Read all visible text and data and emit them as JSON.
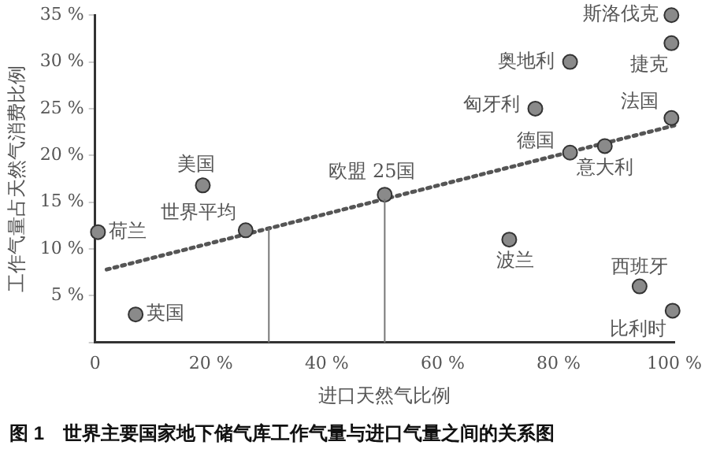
{
  "chart_data": {
    "type": "scatter",
    "xlabel": "进口天然气比例",
    "ylabel": "工作气量占天然气消费比例",
    "xlim": [
      0,
      100
    ],
    "ylim": [
      0,
      35
    ],
    "xticks": [
      {
        "value": 0,
        "label": "0"
      },
      {
        "value": 20,
        "label": "20 %"
      },
      {
        "value": 40,
        "label": "40 %"
      },
      {
        "value": 60,
        "label": "60 %"
      },
      {
        "value": 80,
        "label": "80 %"
      },
      {
        "value": 100,
        "label": "100 %"
      }
    ],
    "yticks": [
      {
        "value": 0,
        "label": null
      },
      {
        "value": 5,
        "label": "5 %"
      },
      {
        "value": 10,
        "label": "10 %"
      },
      {
        "value": 15,
        "label": "15 %"
      },
      {
        "value": 20,
        "label": "20 %"
      },
      {
        "value": 25,
        "label": "25 %"
      },
      {
        "value": 30,
        "label": "30 %"
      },
      {
        "value": 35,
        "label": "35 %"
      }
    ],
    "grid": false,
    "legend": false,
    "marker": "circle",
    "series": [
      {
        "type": "scatter",
        "color": "#8a8a8a",
        "x": [
          99.5,
          99.5,
          82,
          76,
          99.5,
          82,
          88,
          18.6,
          50,
          26,
          0.5,
          71.5,
          7,
          94,
          99.7
        ],
        "values": [
          35,
          32,
          30,
          25,
          24,
          20.3,
          21,
          16.8,
          15.8,
          12,
          11.8,
          11,
          3,
          6,
          3.4
        ]
      },
      {
        "type": "line",
        "color": "#555555",
        "line_style": "dotted",
        "marker": "none",
        "x": [
          2,
          100
        ],
        "values": [
          7.8,
          23.2
        ]
      }
    ],
    "ref_lines": [
      {
        "axis": "x",
        "value": 30,
        "color": "#777777"
      },
      {
        "axis": "x",
        "value": 50,
        "color": "#777777"
      }
    ],
    "annotations": [
      {
        "text": "斯洛伐克",
        "x": 99.5,
        "y": 35
      },
      {
        "text": "捷克",
        "x": 99.5,
        "y": 32
      },
      {
        "text": "奥地利",
        "x": 82,
        "y": 30
      },
      {
        "text": "匈牙利",
        "x": 76,
        "y": 25
      },
      {
        "text": "法国",
        "x": 99.5,
        "y": 24
      },
      {
        "text": "德国",
        "x": 82,
        "y": 20.3
      },
      {
        "text": "意大利",
        "x": 88,
        "y": 21
      },
      {
        "text": "美国",
        "x": 18.6,
        "y": 16.8
      },
      {
        "text": "欧盟 25国",
        "x": 50,
        "y": 15.8
      },
      {
        "text": "世界平均",
        "x": 26,
        "y": 12
      },
      {
        "text": "荷兰",
        "x": 0.5,
        "y": 11.8
      },
      {
        "text": "波兰",
        "x": 71.5,
        "y": 11
      },
      {
        "text": "英国",
        "x": 7,
        "y": 3
      },
      {
        "text": "西班牙",
        "x": 94,
        "y": 6
      },
      {
        "text": "比利时",
        "x": 99.7,
        "y": 3.4
      },
      "图 1　世界主要国家地下储气库工作气量与进口气量之间的关系图"
    ]
  }
}
